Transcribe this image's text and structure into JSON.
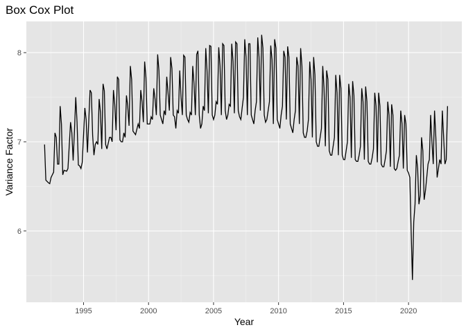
{
  "chart_data": {
    "type": "line",
    "title": "Box Cox Plot",
    "xlabel": "Year",
    "ylabel": "Variance Factor",
    "xlim": [
      1990.6,
      2024.1
    ],
    "ylim": [
      5.2,
      8.35
    ],
    "x_ticks": [
      1995,
      2000,
      2005,
      2010,
      2015,
      2020
    ],
    "x_tick_labels": [
      "1995",
      "2000",
      "2005",
      "2010",
      "2015",
      "2020"
    ],
    "y_ticks": [
      6,
      7,
      8
    ],
    "y_tick_labels": [
      "6",
      "7",
      "8"
    ],
    "grid": true,
    "legend": "none",
    "line_color": "#000000",
    "panel_color": "#e5e5e5",
    "series": [
      {
        "values": [
          [
            1992.0,
            6.97
          ],
          [
            1992.1,
            6.57
          ],
          [
            1992.3,
            6.54
          ],
          [
            1992.4,
            6.53
          ],
          [
            1992.5,
            6.6
          ],
          [
            1992.7,
            6.66
          ],
          [
            1992.8,
            7.1
          ],
          [
            1992.9,
            7.05
          ],
          [
            1993.0,
            6.75
          ],
          [
            1993.1,
            6.75
          ],
          [
            1993.2,
            7.4
          ],
          [
            1993.3,
            7.2
          ],
          [
            1993.4,
            6.63
          ],
          [
            1993.5,
            6.68
          ],
          [
            1993.7,
            6.67
          ],
          [
            1993.8,
            6.7
          ],
          [
            1994.0,
            7.22
          ],
          [
            1994.1,
            7.1
          ],
          [
            1994.2,
            6.79
          ],
          [
            1994.3,
            7.12
          ],
          [
            1994.4,
            7.5
          ],
          [
            1994.5,
            7.22
          ],
          [
            1994.6,
            6.74
          ],
          [
            1994.7,
            6.73
          ],
          [
            1994.8,
            6.7
          ],
          [
            1994.9,
            6.77
          ],
          [
            1995.1,
            7.38
          ],
          [
            1995.2,
            7.25
          ],
          [
            1995.3,
            6.88
          ],
          [
            1995.5,
            7.58
          ],
          [
            1995.6,
            7.55
          ],
          [
            1995.7,
            7.07
          ],
          [
            1995.8,
            6.85
          ],
          [
            1995.9,
            6.97
          ],
          [
            1996.0,
            7.0
          ],
          [
            1996.1,
            6.97
          ],
          [
            1996.2,
            7.48
          ],
          [
            1996.3,
            7.33
          ],
          [
            1996.4,
            6.92
          ],
          [
            1996.5,
            7.65
          ],
          [
            1996.6,
            7.57
          ],
          [
            1996.7,
            6.97
          ],
          [
            1996.8,
            6.92
          ],
          [
            1997.0,
            7.05
          ],
          [
            1997.1,
            7.05
          ],
          [
            1997.2,
            7.0
          ],
          [
            1997.3,
            7.58
          ],
          [
            1997.4,
            7.42
          ],
          [
            1997.5,
            7.13
          ],
          [
            1997.6,
            7.73
          ],
          [
            1997.7,
            7.7
          ],
          [
            1997.8,
            7.02
          ],
          [
            1997.9,
            7.0
          ],
          [
            1998.0,
            7.0
          ],
          [
            1998.1,
            7.1
          ],
          [
            1998.2,
            7.05
          ],
          [
            1998.3,
            7.52
          ],
          [
            1998.4,
            7.4
          ],
          [
            1998.5,
            7.18
          ],
          [
            1998.6,
            7.85
          ],
          [
            1998.7,
            7.7
          ],
          [
            1998.8,
            7.12
          ],
          [
            1998.9,
            7.1
          ],
          [
            1999.0,
            7.08
          ],
          [
            1999.2,
            7.2
          ],
          [
            1999.3,
            7.15
          ],
          [
            1999.4,
            7.58
          ],
          [
            1999.5,
            7.45
          ],
          [
            1999.6,
            7.22
          ],
          [
            1999.7,
            7.9
          ],
          [
            1999.8,
            7.72
          ],
          [
            1999.9,
            7.2
          ],
          [
            2000.0,
            7.2
          ],
          [
            2000.1,
            7.2
          ],
          [
            2000.2,
            7.28
          ],
          [
            2000.3,
            7.25
          ],
          [
            2000.4,
            7.6
          ],
          [
            2000.5,
            7.48
          ],
          [
            2000.6,
            7.3
          ],
          [
            2000.7,
            7.98
          ],
          [
            2000.8,
            7.8
          ],
          [
            2000.9,
            7.3
          ],
          [
            2001.0,
            7.25
          ],
          [
            2001.1,
            7.2
          ],
          [
            2001.2,
            7.35
          ],
          [
            2001.3,
            7.3
          ],
          [
            2001.4,
            7.73
          ],
          [
            2001.5,
            7.55
          ],
          [
            2001.6,
            7.35
          ],
          [
            2001.7,
            7.95
          ],
          [
            2001.8,
            7.82
          ],
          [
            2001.9,
            7.3
          ],
          [
            2002.0,
            7.28
          ],
          [
            2002.1,
            7.15
          ],
          [
            2002.2,
            7.35
          ],
          [
            2002.3,
            7.32
          ],
          [
            2002.4,
            7.8
          ],
          [
            2002.5,
            7.5
          ],
          [
            2002.6,
            7.3
          ],
          [
            2002.7,
            7.97
          ],
          [
            2002.8,
            7.95
          ],
          [
            2002.9,
            7.3
          ],
          [
            2003.0,
            7.25
          ],
          [
            2003.1,
            7.22
          ],
          [
            2003.2,
            7.33
          ],
          [
            2003.3,
            7.3
          ],
          [
            2003.4,
            7.85
          ],
          [
            2003.5,
            7.65
          ],
          [
            2003.6,
            7.3
          ],
          [
            2003.7,
            7.98
          ],
          [
            2003.8,
            8.02
          ],
          [
            2003.9,
            7.3
          ],
          [
            2004.0,
            7.15
          ],
          [
            2004.1,
            7.2
          ],
          [
            2004.2,
            7.4
          ],
          [
            2004.3,
            7.35
          ],
          [
            2004.4,
            8.05
          ],
          [
            2004.5,
            7.8
          ],
          [
            2004.6,
            7.32
          ],
          [
            2004.7,
            8.08
          ],
          [
            2004.8,
            8.07
          ],
          [
            2004.9,
            7.3
          ],
          [
            2005.0,
            7.25
          ],
          [
            2005.1,
            7.3
          ],
          [
            2005.2,
            7.45
          ],
          [
            2005.3,
            7.42
          ],
          [
            2005.4,
            8.06
          ],
          [
            2005.5,
            7.85
          ],
          [
            2005.6,
            7.3
          ],
          [
            2005.7,
            8.1
          ],
          [
            2005.8,
            8.08
          ],
          [
            2005.9,
            7.35
          ],
          [
            2006.0,
            7.25
          ],
          [
            2006.1,
            7.3
          ],
          [
            2006.2,
            7.42
          ],
          [
            2006.3,
            7.4
          ],
          [
            2006.4,
            8.1
          ],
          [
            2006.5,
            7.9
          ],
          [
            2006.6,
            7.32
          ],
          [
            2006.7,
            8.12
          ],
          [
            2006.8,
            8.1
          ],
          [
            2006.9,
            7.35
          ],
          [
            2007.0,
            7.28
          ],
          [
            2007.1,
            7.25
          ],
          [
            2007.2,
            7.38
          ],
          [
            2007.3,
            7.5
          ],
          [
            2007.4,
            8.15
          ],
          [
            2007.5,
            7.95
          ],
          [
            2007.6,
            7.3
          ],
          [
            2007.7,
            8.1
          ],
          [
            2007.8,
            8.1
          ],
          [
            2007.9,
            7.3
          ],
          [
            2008.0,
            7.25
          ],
          [
            2008.1,
            7.2
          ],
          [
            2008.2,
            7.35
          ],
          [
            2008.3,
            7.45
          ],
          [
            2008.4,
            8.17
          ],
          [
            2008.5,
            7.95
          ],
          [
            2008.6,
            7.35
          ],
          [
            2008.7,
            8.2
          ],
          [
            2008.8,
            8.05
          ],
          [
            2008.9,
            7.3
          ],
          [
            2009.0,
            7.22
          ],
          [
            2009.1,
            7.25
          ],
          [
            2009.2,
            7.35
          ],
          [
            2009.3,
            7.45
          ],
          [
            2009.4,
            8.08
          ],
          [
            2009.5,
            7.92
          ],
          [
            2009.6,
            7.2
          ],
          [
            2009.7,
            8.15
          ],
          [
            2009.8,
            8.05
          ],
          [
            2009.9,
            7.25
          ],
          [
            2010.0,
            7.2
          ],
          [
            2010.1,
            7.15
          ],
          [
            2010.2,
            7.3
          ],
          [
            2010.3,
            7.4
          ],
          [
            2010.4,
            8.02
          ],
          [
            2010.5,
            7.95
          ],
          [
            2010.6,
            7.25
          ],
          [
            2010.7,
            8.07
          ],
          [
            2010.8,
            7.95
          ],
          [
            2010.9,
            7.2
          ],
          [
            2011.0,
            7.15
          ],
          [
            2011.1,
            7.1
          ],
          [
            2011.2,
            7.25
          ],
          [
            2011.3,
            7.35
          ],
          [
            2011.4,
            7.95
          ],
          [
            2011.5,
            7.85
          ],
          [
            2011.6,
            7.2
          ],
          [
            2011.7,
            8.05
          ],
          [
            2011.8,
            7.85
          ],
          [
            2011.9,
            7.1
          ],
          [
            2012.0,
            7.05
          ],
          [
            2012.1,
            7.05
          ],
          [
            2012.2,
            7.12
          ],
          [
            2012.3,
            7.25
          ],
          [
            2012.4,
            7.9
          ],
          [
            2012.5,
            7.7
          ],
          [
            2012.6,
            7.05
          ],
          [
            2012.7,
            7.95
          ],
          [
            2012.8,
            7.75
          ],
          [
            2012.9,
            7.0
          ],
          [
            2013.0,
            6.95
          ],
          [
            2013.1,
            6.95
          ],
          [
            2013.2,
            7.05
          ],
          [
            2013.3,
            7.15
          ],
          [
            2013.4,
            7.85
          ],
          [
            2013.5,
            7.6
          ],
          [
            2013.6,
            6.95
          ],
          [
            2013.7,
            7.8
          ],
          [
            2013.8,
            7.7
          ],
          [
            2013.9,
            6.9
          ],
          [
            2014.0,
            6.85
          ],
          [
            2014.1,
            6.85
          ],
          [
            2014.2,
            6.95
          ],
          [
            2014.3,
            7.05
          ],
          [
            2014.4,
            7.75
          ],
          [
            2014.5,
            7.55
          ],
          [
            2014.6,
            6.85
          ],
          [
            2014.7,
            7.75
          ],
          [
            2014.8,
            7.6
          ],
          [
            2014.9,
            6.85
          ],
          [
            2015.0,
            6.8
          ],
          [
            2015.1,
            6.8
          ],
          [
            2015.2,
            6.9
          ],
          [
            2015.3,
            7.0
          ],
          [
            2015.4,
            7.65
          ],
          [
            2015.5,
            7.5
          ],
          [
            2015.6,
            6.82
          ],
          [
            2015.7,
            7.68
          ],
          [
            2015.8,
            7.52
          ],
          [
            2015.9,
            6.8
          ],
          [
            2016.0,
            6.78
          ],
          [
            2016.1,
            6.78
          ],
          [
            2016.2,
            6.85
          ],
          [
            2016.3,
            6.95
          ],
          [
            2016.4,
            7.6
          ],
          [
            2016.5,
            7.45
          ],
          [
            2016.6,
            6.8
          ],
          [
            2016.7,
            7.62
          ],
          [
            2016.8,
            7.45
          ],
          [
            2016.9,
            6.78
          ],
          [
            2017.0,
            6.75
          ],
          [
            2017.1,
            6.75
          ],
          [
            2017.2,
            6.82
          ],
          [
            2017.3,
            6.92
          ],
          [
            2017.4,
            7.55
          ],
          [
            2017.5,
            7.4
          ],
          [
            2017.6,
            6.77
          ],
          [
            2017.7,
            7.55
          ],
          [
            2017.8,
            7.4
          ],
          [
            2017.9,
            6.75
          ],
          [
            2018.0,
            6.72
          ],
          [
            2018.1,
            6.72
          ],
          [
            2018.2,
            6.8
          ],
          [
            2018.3,
            6.9
          ],
          [
            2018.4,
            7.45
          ],
          [
            2018.5,
            7.3
          ],
          [
            2018.6,
            6.72
          ],
          [
            2018.7,
            7.42
          ],
          [
            2018.8,
            7.3
          ],
          [
            2018.9,
            6.7
          ],
          [
            2019.0,
            6.68
          ],
          [
            2019.1,
            6.7
          ],
          [
            2019.2,
            6.78
          ],
          [
            2019.3,
            6.85
          ],
          [
            2019.4,
            7.35
          ],
          [
            2019.5,
            7.2
          ],
          [
            2019.6,
            6.7
          ],
          [
            2019.7,
            7.3
          ],
          [
            2019.8,
            7.2
          ],
          [
            2019.9,
            6.68
          ],
          [
            2020.0,
            6.65
          ],
          [
            2020.1,
            6.6
          ],
          [
            2020.2,
            6.0
          ],
          [
            2020.3,
            5.45
          ],
          [
            2020.4,
            6.1
          ],
          [
            2020.5,
            6.3
          ],
          [
            2020.6,
            6.85
          ],
          [
            2020.7,
            6.7
          ],
          [
            2020.8,
            6.3
          ],
          [
            2020.9,
            6.4
          ],
          [
            2021.0,
            7.05
          ],
          [
            2021.1,
            6.9
          ],
          [
            2021.2,
            6.35
          ],
          [
            2021.3,
            6.45
          ],
          [
            2021.4,
            6.6
          ],
          [
            2021.5,
            6.75
          ],
          [
            2021.6,
            6.8
          ],
          [
            2021.7,
            7.3
          ],
          [
            2021.8,
            7.0
          ],
          [
            2021.9,
            6.75
          ],
          [
            2022.0,
            7.35
          ],
          [
            2022.1,
            7.05
          ],
          [
            2022.2,
            6.6
          ],
          [
            2022.3,
            6.7
          ],
          [
            2022.4,
            6.8
          ],
          [
            2022.5,
            6.75
          ],
          [
            2022.6,
            7.35
          ],
          [
            2022.7,
            7.05
          ],
          [
            2022.8,
            6.75
          ],
          [
            2022.9,
            6.8
          ],
          [
            2023.0,
            7.4
          ]
        ]
      }
    ]
  }
}
